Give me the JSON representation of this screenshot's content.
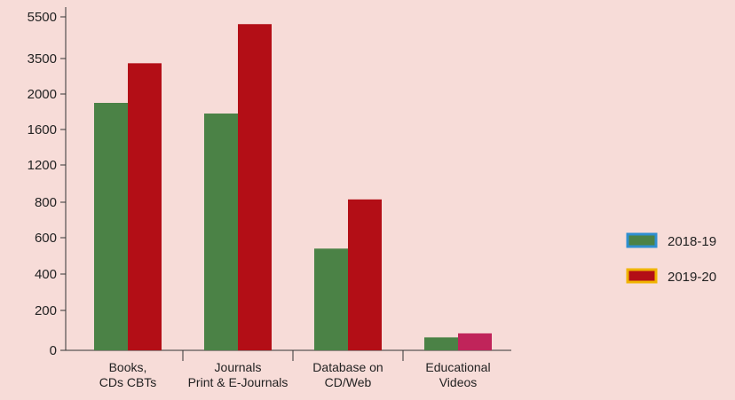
{
  "chart_data": {
    "type": "bar",
    "title": "",
    "xlabel": "",
    "ylabel": "",
    "y_ticks": [
      "0",
      "200",
      "400",
      "600",
      "800",
      "1200",
      "1600",
      "2000",
      "3500",
      "5500"
    ],
    "categories": [
      [
        "Books,",
        "CDs CBTs"
      ],
      [
        "Journals",
        "Print & E-Journals"
      ],
      [
        "Database on",
        "CD/Web"
      ],
      [
        "Educational",
        "Videos"
      ]
    ],
    "series": [
      {
        "name": "2018-19",
        "color": "#4b8246",
        "legend_border": "#2f8fd0",
        "values": [
          1900,
          1780,
          540,
          65
        ]
      },
      {
        "name": "2019-20",
        "color": "#b30e16",
        "legend_border": "#f0b400",
        "values": [
          3300,
          5150,
          830,
          85
        ]
      }
    ],
    "special_colors": [
      {
        "series": 1,
        "category": 3,
        "color": "#c0245a"
      }
    ],
    "grid": false,
    "legend_position": "right"
  }
}
